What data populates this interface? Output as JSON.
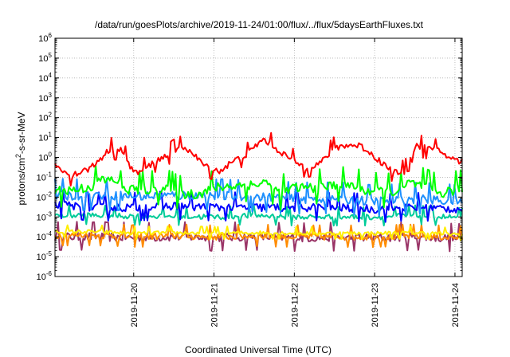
{
  "chart_data": {
    "type": "line",
    "title": "/data/run/goesPlots/archive/2019-11-24/01:00/flux/../flux/5daysEarthFluxes.txt",
    "xlabel": "Coordinated Universal Time (UTC)",
    "ylabel_base": "protons/cm",
    "ylabel_sup": "2",
    "ylabel_rest": "-s-sr-MeV",
    "y_scale": "log",
    "ylim": [
      1e-06,
      1000000.0
    ],
    "y_ticks": [
      {
        "base": "10",
        "exp": "-6",
        "value": 1e-06
      },
      {
        "base": "10",
        "exp": "-5",
        "value": 1e-05
      },
      {
        "base": "10",
        "exp": "-4",
        "value": 0.0001
      },
      {
        "base": "10",
        "exp": "-3",
        "value": 0.001
      },
      {
        "base": "10",
        "exp": "-2",
        "value": 0.01
      },
      {
        "base": "10",
        "exp": "-1",
        "value": 0.1
      },
      {
        "base": "10",
        "exp": "0",
        "value": 1
      },
      {
        "base": "10",
        "exp": "1",
        "value": 10
      },
      {
        "base": "10",
        "exp": "2",
        "value": 100
      },
      {
        "base": "10",
        "exp": "3",
        "value": 1000
      },
      {
        "base": "10",
        "exp": "4",
        "value": 10000
      },
      {
        "base": "10",
        "exp": "5",
        "value": 100000
      },
      {
        "base": "10",
        "exp": "6",
        "value": 1000000
      }
    ],
    "xlim_days": [
      0,
      5.07
    ],
    "x_ticks": [
      {
        "label": "2019-11-20",
        "day": 0.98
      },
      {
        "label": "2019-11-21",
        "day": 1.98
      },
      {
        "label": "2019-11-22",
        "day": 2.98
      },
      {
        "label": "2019-11-23",
        "day": 3.98
      },
      {
        "label": "2019-11-24",
        "day": 4.98
      }
    ],
    "grid": true,
    "legend": "none",
    "series": [
      {
        "color": "#ff0000",
        "base_points": [
          [
            0,
            0.4
          ],
          [
            0.2,
            0.12
          ],
          [
            0.45,
            0.3
          ],
          [
            0.68,
            2.5
          ],
          [
            0.82,
            2.5
          ],
          [
            0.95,
            0.3
          ],
          [
            1.02,
            0.15
          ],
          [
            1.25,
            0.6
          ],
          [
            1.55,
            3
          ],
          [
            1.62,
            3.5
          ],
          [
            1.78,
            0.8
          ],
          [
            1.9,
            0.3
          ],
          [
            2.05,
            0.2
          ],
          [
            2.18,
            0.5
          ],
          [
            2.4,
            1.5
          ],
          [
            2.58,
            8
          ],
          [
            2.65,
            6
          ],
          [
            2.9,
            1
          ],
          [
            3.12,
            0.3
          ],
          [
            3.3,
            0.5
          ],
          [
            3.48,
            3
          ],
          [
            3.6,
            4
          ],
          [
            3.8,
            4
          ],
          [
            3.9,
            2
          ],
          [
            4.2,
            0.2
          ],
          [
            4.3,
            0.15
          ],
          [
            4.42,
            0.3
          ],
          [
            4.43,
            1.5
          ],
          [
            4.5,
            4
          ],
          [
            4.6,
            3
          ],
          [
            4.8,
            2
          ],
          [
            4.95,
            0.8
          ],
          [
            5.07,
            0.6
          ]
        ],
        "noise": 0.35
      },
      {
        "color": "#00ff00",
        "base_points": [
          [
            0,
            0.02
          ],
          [
            0.3,
            0.025
          ],
          [
            0.5,
            0.04
          ],
          [
            0.52,
            0.07
          ],
          [
            0.8,
            0.07
          ],
          [
            0.82,
            0.025
          ],
          [
            1.2,
            0.025
          ],
          [
            1.4,
            0.03
          ],
          [
            1.55,
            0.015
          ],
          [
            1.8,
            0.015
          ],
          [
            2.0,
            0.03
          ],
          [
            2.3,
            0.04
          ],
          [
            2.5,
            0.04
          ],
          [
            2.6,
            0.06
          ],
          [
            2.8,
            0.015
          ],
          [
            3.0,
            0.03
          ],
          [
            3.3,
            0.03
          ],
          [
            3.5,
            0.04
          ],
          [
            3.7,
            0.04
          ],
          [
            3.9,
            0.02
          ],
          [
            4.1,
            0.02
          ],
          [
            4.3,
            0.02
          ],
          [
            4.4,
            0.05
          ],
          [
            4.6,
            0.035
          ],
          [
            4.8,
            0.015
          ],
          [
            5.07,
            0.03
          ]
        ],
        "noise": 0.55
      },
      {
        "color": "#1e90ff",
        "base_points": [
          [
            0,
            0.012
          ],
          [
            0.5,
            0.012
          ],
          [
            0.55,
            0.013
          ],
          [
            1.0,
            0.011
          ],
          [
            1.5,
            0.012
          ],
          [
            2.0,
            0.012
          ],
          [
            2.5,
            0.01
          ],
          [
            3.0,
            0.008
          ],
          [
            3.5,
            0.008
          ],
          [
            4.0,
            0.006
          ],
          [
            4.5,
            0.008
          ],
          [
            5.07,
            0.006
          ]
        ],
        "noise": 0.5
      },
      {
        "color": "#0000ff",
        "base_points": [
          [
            0,
            0.004
          ],
          [
            0.5,
            0.003
          ],
          [
            1.0,
            0.003
          ],
          [
            1.5,
            0.0035
          ],
          [
            2.0,
            0.003
          ],
          [
            2.5,
            0.003
          ],
          [
            3.0,
            0.003
          ],
          [
            3.5,
            0.003
          ],
          [
            4.0,
            0.0025
          ],
          [
            4.5,
            0.003
          ],
          [
            5.07,
            0.0025
          ]
        ],
        "noise": 0.45
      },
      {
        "color": "#00cc99",
        "base_points": [
          [
            0,
            0.0012
          ],
          [
            0.5,
            0.0012
          ],
          [
            1.0,
            0.0011
          ],
          [
            1.5,
            0.0011
          ],
          [
            2.0,
            0.001
          ],
          [
            2.5,
            0.0012
          ],
          [
            3.0,
            0.001
          ],
          [
            3.5,
            0.001
          ],
          [
            4.0,
            0.001
          ],
          [
            4.5,
            0.0012
          ],
          [
            5.07,
            0.0009
          ]
        ],
        "noise": 0.3
      },
      {
        "color": "#ffee00",
        "base_points": [
          [
            0,
            0.00018
          ],
          [
            0.5,
            0.00018
          ],
          [
            1.0,
            0.00015
          ],
          [
            1.5,
            0.00016
          ],
          [
            2.0,
            0.00015
          ],
          [
            2.5,
            0.00016
          ],
          [
            3.0,
            0.00015
          ],
          [
            3.5,
            0.00015
          ],
          [
            4.0,
            0.00015
          ],
          [
            4.5,
            0.00016
          ],
          [
            5.07,
            0.00013
          ]
        ],
        "noise": 0.2
      },
      {
        "color": "#ff8c00",
        "base_points": [
          [
            0,
            0.00012
          ],
          [
            0.5,
            0.00012
          ],
          [
            1.0,
            0.0001
          ],
          [
            1.5,
            0.00011
          ],
          [
            2.0,
            0.0001
          ],
          [
            2.5,
            0.00011
          ],
          [
            3.0,
            0.0001
          ],
          [
            3.5,
            0.0001
          ],
          [
            4.0,
            0.0001
          ],
          [
            4.5,
            0.00011
          ],
          [
            5.07,
            9e-05
          ]
        ],
        "noise": 0.35
      },
      {
        "color": "#993366",
        "base_points": [
          [
            0,
            0.0001
          ],
          [
            0.5,
            0.0001
          ],
          [
            1.0,
            9e-05
          ],
          [
            1.5,
            0.0001
          ],
          [
            2.0,
            9e-05
          ],
          [
            2.5,
            0.0001
          ],
          [
            3.0,
            9e-05
          ],
          [
            3.5,
            9e-05
          ],
          [
            4.0,
            9e-05
          ],
          [
            4.5,
            0.0001
          ],
          [
            5.07,
            8e-05
          ]
        ],
        "noise": 0.45
      }
    ]
  }
}
